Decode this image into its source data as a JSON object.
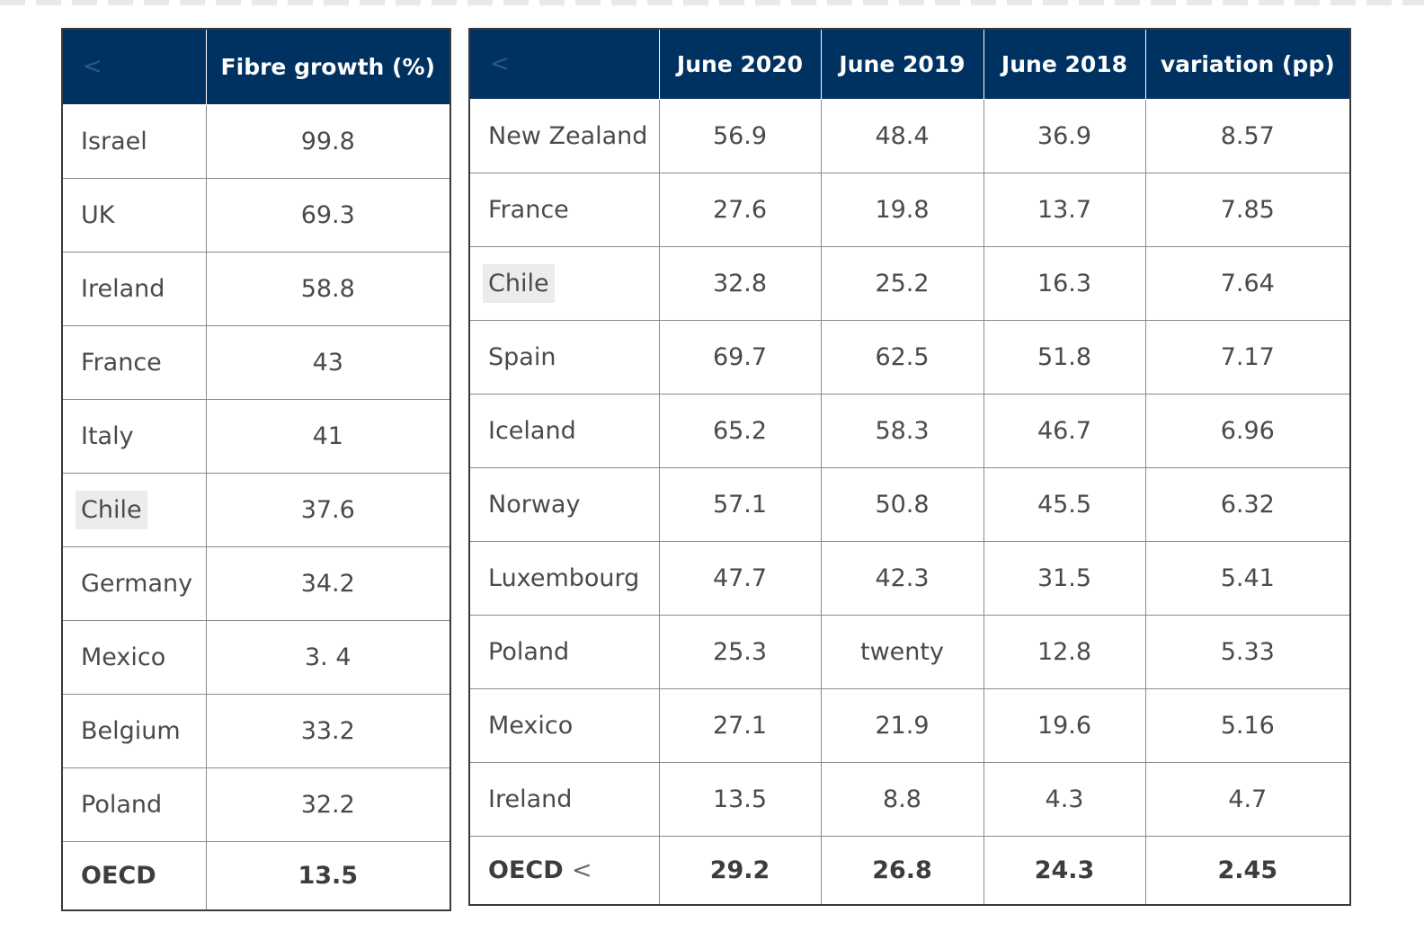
{
  "left_table": {
    "header": {
      "corner": "<",
      "col": "Fibre growth (%)"
    },
    "rows": [
      {
        "country": "Israel",
        "value": "99.8"
      },
      {
        "country": "UK",
        "value": "69.3"
      },
      {
        "country": "Ireland",
        "value": "58.8"
      },
      {
        "country": "France",
        "value": "43"
      },
      {
        "country": "Italy",
        "value": "41"
      },
      {
        "country": "Chile",
        "value": "37.6"
      },
      {
        "country": "Germany",
        "value": "34.2"
      },
      {
        "country": "Mexico",
        "value": "3. 4"
      },
      {
        "country": "Belgium",
        "value": "33.2"
      },
      {
        "country": "Poland",
        "value": "32.2"
      }
    ],
    "total": {
      "country": "OECD",
      "value": "13.5"
    }
  },
  "right_table": {
    "header": {
      "corner": "<",
      "cols": [
        "June 2020",
        "June 2019",
        "June 2018",
        "variation (pp)"
      ]
    },
    "rows": [
      {
        "country": "New Zealand",
        "values": [
          "56.9",
          "48.4",
          "36.9",
          "8.57"
        ]
      },
      {
        "country": "France",
        "values": [
          "27.6",
          "19.8",
          "13.7",
          "7.85"
        ]
      },
      {
        "country": "Chile",
        "values": [
          "32.8",
          "25.2",
          "16.3",
          "7.64"
        ]
      },
      {
        "country": "Spain",
        "values": [
          "69.7",
          "62.5",
          "51.8",
          "7.17"
        ]
      },
      {
        "country": "Iceland",
        "values": [
          "65.2",
          "58.3",
          "46.7",
          "6.96"
        ]
      },
      {
        "country": "Norway",
        "values": [
          "57.1",
          "50.8",
          "45.5",
          "6.32"
        ]
      },
      {
        "country": "Luxembourg",
        "values": [
          "47.7",
          "42.3",
          "31.5",
          "5.41"
        ]
      },
      {
        "country": "Poland",
        "values": [
          "25.3",
          "twenty",
          "12.8",
          "5.33"
        ]
      },
      {
        "country": "Mexico",
        "values": [
          "27.1",
          "21.9",
          "19.6",
          "5.16"
        ]
      },
      {
        "country": "Ireland",
        "values": [
          "13.5",
          "8.8",
          "4.3",
          "4.7"
        ]
      }
    ],
    "total": {
      "country": "OECD",
      "marker": "<",
      "values": [
        "29.2",
        "26.8",
        "24.3",
        "2.45"
      ]
    }
  },
  "colors": {
    "header_bg": "#003261",
    "header_text": "#ffffff",
    "cell_text": "#4a4a4a",
    "border": "#8a8a8a"
  }
}
